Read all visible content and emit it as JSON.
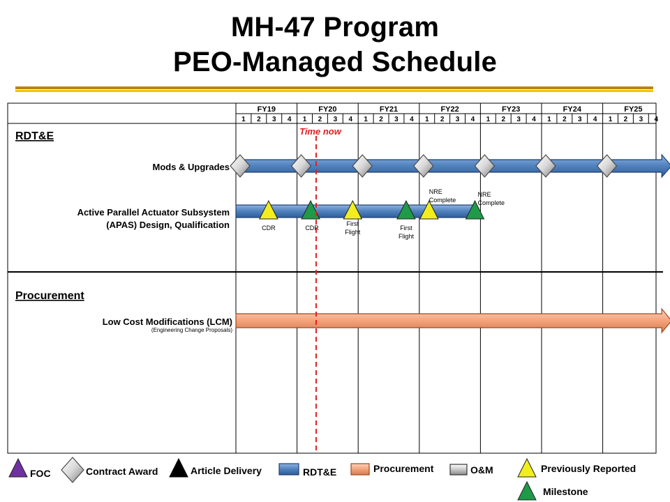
{
  "title": {
    "line1": "MH-47 Program",
    "line2": "PEO-Managed Schedule"
  },
  "colors": {
    "rdte_bar": "#4f81bd",
    "procurement_bar": "#f4a27a",
    "previously_reported": "#f2ee1e",
    "milestone": "#1f9a48",
    "foc": "#7030a0",
    "time_now": "#e02020"
  },
  "chart_data": {
    "type": "gantt",
    "fiscal_years": [
      "FY19",
      "FY20",
      "FY21",
      "FY22",
      "FY23",
      "FY24",
      "FY25"
    ],
    "quarters": [
      "1",
      "2",
      "3",
      "4"
    ],
    "time_now": {
      "label": "Time now",
      "x": 5.25
    },
    "sections": [
      {
        "name": "RDT&E",
        "rows": [
          {
            "label": "Mods & Upgrades",
            "bar": {
              "type": "rdte",
              "start": 0,
              "end": 28,
              "arrow": true
            },
            "markers": [
              {
                "x": 0,
                "shape": "diamond"
              },
              {
                "x": 4,
                "shape": "diamond"
              },
              {
                "x": 8,
                "shape": "diamond"
              },
              {
                "x": 12,
                "shape": "diamond"
              },
              {
                "x": 16,
                "shape": "diamond"
              },
              {
                "x": 20,
                "shape": "diamond"
              },
              {
                "x": 24,
                "shape": "diamond"
              }
            ]
          },
          {
            "label_line1": "Active Parallel Actuator Subsystem",
            "label_line2": "(APAS) Design, Qualification",
            "bar": {
              "type": "rdte",
              "start": 0,
              "end": 15.5,
              "arrow": false
            },
            "markers": [
              {
                "x": 1.5,
                "shape": "triangle",
                "kind": "previously_reported",
                "label": "CDR"
              },
              {
                "x": 4.25,
                "shape": "triangle",
                "kind": "milestone",
                "label": "CDR"
              },
              {
                "x": 7,
                "shape": "triangle",
                "kind": "previously_reported",
                "label_line1": "First",
                "label_line2": "Flight"
              },
              {
                "x": 10.5,
                "shape": "triangle",
                "kind": "milestone",
                "label_line1": "First",
                "label_line2": "Flight"
              },
              {
                "x": 12,
                "shape": "triangle",
                "kind": "previously_reported",
                "label_line1": "NRE",
                "label_line2": "Complete"
              },
              {
                "x": 15,
                "shape": "triangle",
                "kind": "milestone",
                "label_line1": "NRE",
                "label_line2": "Complete"
              }
            ]
          }
        ]
      },
      {
        "name": "Procurement",
        "rows": [
          {
            "label": "Low Cost Modifications (LCM)",
            "sublabel": "(Engineering Change Proposals)",
            "bar": {
              "type": "procurement",
              "start": 0,
              "end": 28,
              "arrow": true
            },
            "markers": []
          }
        ]
      }
    ],
    "legend": [
      "FOC",
      "Contract Award",
      "Article Delivery",
      "RDT&E",
      "Procurement",
      "O&M",
      "Previously Reported",
      "Milestone"
    ]
  }
}
